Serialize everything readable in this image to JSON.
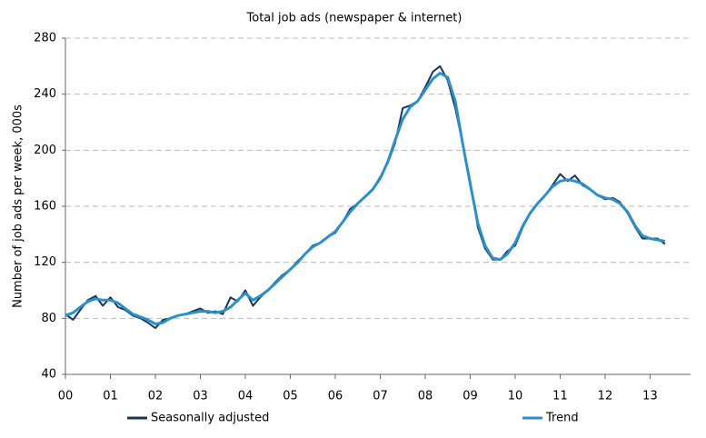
{
  "chart_data": {
    "type": "line",
    "title": "Total job ads (newspaper & internet)",
    "y_label": "Number of job ads per week, 000s",
    "x": [
      0,
      0.17,
      0.33,
      0.5,
      0.67,
      0.83,
      1,
      1.17,
      1.33,
      1.5,
      1.67,
      1.83,
      2,
      2.17,
      2.33,
      2.5,
      2.67,
      2.83,
      3,
      3.17,
      3.33,
      3.5,
      3.67,
      3.83,
      4,
      4.17,
      4.33,
      4.5,
      4.67,
      4.83,
      5,
      5.17,
      5.33,
      5.5,
      5.67,
      5.83,
      6,
      6.17,
      6.33,
      6.5,
      6.67,
      6.83,
      7,
      7.17,
      7.33,
      7.5,
      7.67,
      7.83,
      8,
      8.17,
      8.33,
      8.5,
      8.67,
      8.83,
      9,
      9.17,
      9.33,
      9.5,
      9.67,
      9.83,
      10,
      10.17,
      10.33,
      10.5,
      10.67,
      10.83,
      11,
      11.17,
      11.33,
      11.5,
      11.67,
      11.83,
      12,
      12.17,
      12.33,
      12.5,
      12.67,
      12.83,
      13,
      13.17,
      13.33
    ],
    "series": [
      {
        "name": "Seasonally adjusted",
        "color": "#17375e",
        "values": [
          83,
          79,
          86,
          93,
          96,
          89,
          95,
          88,
          86,
          82,
          80,
          77,
          73,
          79,
          80,
          82,
          83,
          85,
          87,
          84,
          85,
          83,
          95,
          92,
          100,
          89,
          95,
          100,
          106,
          111,
          115,
          121,
          126,
          132,
          134,
          138,
          141,
          149,
          158,
          162,
          167,
          172,
          181,
          191,
          205,
          230,
          232,
          235,
          245,
          256,
          260,
          250,
          230,
          205,
          178,
          145,
          130,
          122,
          122,
          128,
          132,
          145,
          155,
          162,
          168,
          175,
          183,
          178,
          182,
          175,
          172,
          168,
          165,
          166,
          163,
          155,
          145,
          137,
          137,
          137,
          133
        ]
      },
      {
        "name": "Trend",
        "color": "#2e8fc7",
        "values": [
          82,
          84,
          88,
          92,
          94,
          93,
          93,
          91,
          87,
          83,
          81,
          79,
          76,
          77,
          80,
          82,
          83,
          84,
          85,
          85,
          84,
          85,
          88,
          93,
          98,
          93,
          96,
          100,
          105,
          110,
          115,
          120,
          126,
          131,
          134,
          138,
          142,
          149,
          156,
          162,
          167,
          172,
          180,
          192,
          207,
          222,
          231,
          235,
          243,
          251,
          255,
          252,
          235,
          205,
          176,
          148,
          132,
          123,
          122,
          126,
          134,
          146,
          155,
          162,
          168,
          174,
          178,
          179,
          178,
          176,
          172,
          168,
          166,
          165,
          162,
          156,
          146,
          139,
          137,
          136,
          135
        ]
      }
    ],
    "xlim": [
      0,
      13.9
    ],
    "xticks": [
      {
        "value": 0,
        "label": "00"
      },
      {
        "value": 1,
        "label": "01"
      },
      {
        "value": 2,
        "label": "02"
      },
      {
        "value": 3,
        "label": "03"
      },
      {
        "value": 4,
        "label": "04"
      },
      {
        "value": 5,
        "label": "05"
      },
      {
        "value": 6,
        "label": "06"
      },
      {
        "value": 7,
        "label": "07"
      },
      {
        "value": 8,
        "label": "08"
      },
      {
        "value": 9,
        "label": "09"
      },
      {
        "value": 10,
        "label": "10"
      },
      {
        "value": 11,
        "label": "11"
      },
      {
        "value": 12,
        "label": "12"
      },
      {
        "value": 13,
        "label": "13"
      }
    ],
    "ylim": [
      40,
      280
    ],
    "yticks": [
      40,
      80,
      120,
      160,
      200,
      240,
      280
    ],
    "grid": true
  }
}
